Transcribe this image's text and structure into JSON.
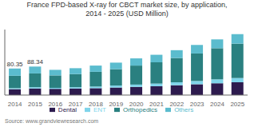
{
  "chart_data": {
    "type": "bar",
    "stacked": true,
    "title": "France FPD-based X-ray for CBCT market size, by application,\n2014 - 2025 (USD Million)",
    "source": "Source: www.grandviewresearch.com",
    "categories": [
      "2014",
      "2015",
      "2016",
      "2017",
      "2018",
      "2019",
      "2020",
      "2021",
      "2022",
      "2023",
      "2024",
      "2025"
    ],
    "series": [
      {
        "name": "Dental",
        "color": "#2d1b4e",
        "values": [
          0.18,
          0.2,
          0.19,
          0.2,
          0.21,
          0.23,
          0.25,
          0.27,
          0.3,
          0.33,
          0.36,
          0.39
        ]
      },
      {
        "name": "ENT",
        "color": "#7fd4ea",
        "values": [
          0.03,
          0.04,
          0.03,
          0.04,
          0.05,
          0.06,
          0.07,
          0.08,
          0.09,
          0.1,
          0.12,
          0.13
        ]
      },
      {
        "name": "Orthopedics",
        "color": "#2a8080",
        "values": [
          0.38,
          0.42,
          0.38,
          0.4,
          0.45,
          0.5,
          0.58,
          0.65,
          0.74,
          0.84,
          0.95,
          1.05
        ]
      },
      {
        "name": "Others",
        "color": "#5bbcce",
        "values": [
          0.22,
          0.21,
          0.17,
          0.18,
          0.19,
          0.2,
          0.22,
          0.23,
          0.24,
          0.26,
          0.27,
          0.29
        ]
      }
    ],
    "annotations": [
      {
        "category": "2014",
        "text": "80.35"
      },
      {
        "category": "2015",
        "text": "88.34"
      }
    ],
    "ylim": [
      0,
      2.0
    ],
    "yticks": [],
    "tick_labels": "x",
    "legend": "bottom",
    "grid": false
  }
}
